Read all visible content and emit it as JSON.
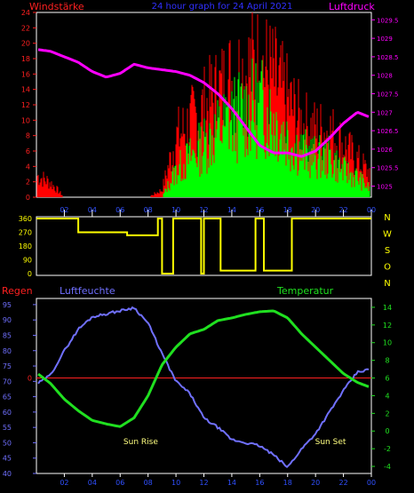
{
  "header": {
    "title": "24 hour graph for  24 April 2021",
    "left_label": "Windstärke",
    "right_label": "Luftdruck"
  },
  "colors": {
    "background": "#000000",
    "frame": "#ffffff",
    "wind_left_axis": "#ff2020",
    "gust": "#ff0000",
    "wind": "#00ff00",
    "pressure": "#ff00ff",
    "direction": "#ffff00",
    "title": "#3030ff",
    "humidity": "#7070ff",
    "temperature": "#20e020",
    "rain": "#ff2020",
    "sun_labels": "#ffff80",
    "x_ticks": "#3050ff"
  },
  "chart_data": [
    {
      "type": "bar",
      "panel": "wind",
      "x_ticks": [
        "02",
        "04",
        "06",
        "08",
        "10",
        "12",
        "14",
        "16",
        "18",
        "20",
        "22",
        "00"
      ],
      "left_axis": {
        "label": "Windstärke",
        "ticks": [
          0,
          2,
          4,
          6,
          8,
          10,
          12,
          14,
          16,
          18,
          20,
          22,
          24
        ],
        "ylim": [
          0,
          24
        ]
      },
      "right_axis": {
        "label": "Luftdruck",
        "ticks": [
          1025,
          1025.5,
          1026,
          1026.5,
          1027,
          1027.5,
          1028,
          1028.5,
          1029,
          1029.5
        ],
        "ylim": [
          1024.7,
          1029.7
        ]
      },
      "hours": [
        0,
        1,
        2,
        3,
        4,
        5,
        6,
        7,
        8,
        9,
        10,
        11,
        12,
        13,
        14,
        15,
        16,
        17,
        18,
        19,
        20,
        21,
        22,
        23,
        24
      ],
      "series": [
        {
          "key": "gust",
          "values": [
            3,
            2,
            0,
            0,
            0,
            0,
            0,
            0,
            0,
            1,
            8,
            10,
            12,
            14,
            16,
            17,
            18,
            16,
            13,
            10,
            9,
            9,
            7,
            5,
            3
          ]
        },
        {
          "key": "wind",
          "values": [
            0,
            0,
            0,
            0,
            0,
            0,
            0,
            0,
            0,
            0,
            4,
            6,
            8,
            10,
            12,
            13,
            14,
            12,
            9,
            7,
            6,
            6,
            4,
            3,
            1
          ]
        },
        {
          "key": "pressure",
          "values": [
            1028.7,
            1028.65,
            1028.5,
            1028.35,
            1028.1,
            1027.95,
            1028.05,
            1028.3,
            1028.2,
            1028.15,
            1028.1,
            1028.0,
            1027.8,
            1027.5,
            1027.1,
            1026.6,
            1026.1,
            1025.9,
            1025.9,
            1025.8,
            1025.95,
            1026.3,
            1026.7,
            1027.0,
            1026.85
          ]
        }
      ]
    },
    {
      "type": "line",
      "panel": "wind-direction",
      "left_axis": {
        "ticks": [
          0,
          90,
          180,
          270,
          360
        ],
        "ylim": [
          0,
          360
        ]
      },
      "right_labels": [
        "N",
        "W",
        "S",
        "O",
        "N"
      ],
      "segments": [
        {
          "hours": [
            0,
            3.0
          ],
          "value": 360
        },
        {
          "hours": [
            3.0,
            6.5
          ],
          "value": 270
        },
        {
          "hours": [
            6.5,
            8.7
          ],
          "value": 250
        },
        {
          "hours": [
            8.7,
            9.0
          ],
          "value": 360
        },
        {
          "hours": [
            9.0,
            9.8
          ],
          "value": 0
        },
        {
          "hours": [
            9.8,
            11.8
          ],
          "value": 360
        },
        {
          "hours": [
            11.8,
            12.0
          ],
          "value": 0
        },
        {
          "hours": [
            12.0,
            13.2
          ],
          "value": 360
        },
        {
          "hours": [
            13.2,
            15.7
          ],
          "value": 20
        },
        {
          "hours": [
            15.7,
            16.3
          ],
          "value": 360
        },
        {
          "hours": [
            16.3,
            18.3
          ],
          "value": 20
        },
        {
          "hours": [
            18.3,
            24.0
          ],
          "value": 360
        }
      ]
    },
    {
      "type": "line",
      "panel": "humidity-temperature",
      "legend": {
        "rain": "Regen",
        "humidity": "Luftfeuchte",
        "temperature": "Temperatur"
      },
      "left_axis": {
        "ticks": [
          40,
          45,
          50,
          55,
          60,
          65,
          70,
          75,
          80,
          85,
          90,
          95
        ],
        "ylim": [
          40,
          97
        ],
        "rain_zero_label": "0"
      },
      "right_axis": {
        "ticks": [
          -4,
          -2,
          0,
          2,
          4,
          6,
          8,
          10,
          12,
          14
        ],
        "ylim": [
          -4.8,
          15
        ]
      },
      "annotations": [
        {
          "text": "Sun Rise",
          "hour": 6.2
        },
        {
          "text": "Sun Set",
          "hour": 19.8
        }
      ],
      "hours": [
        0,
        1,
        2,
        3,
        4,
        5,
        6,
        7,
        8,
        9,
        10,
        11,
        12,
        13,
        14,
        15,
        16,
        17,
        18,
        19,
        20,
        21,
        22,
        23,
        24
      ],
      "series": [
        {
          "key": "humidity",
          "values": [
            69,
            72,
            80,
            87,
            91,
            92,
            93,
            94,
            89,
            79,
            70,
            66,
            58,
            55,
            51,
            50,
            49,
            46,
            42,
            48,
            53,
            60,
            67,
            73,
            74
          ]
        },
        {
          "key": "temperature",
          "values": [
            6.6,
            5.4,
            3.6,
            2.3,
            1.2,
            0.8,
            0.5,
            1.5,
            4.0,
            7.5,
            9.5,
            11.0,
            11.5,
            12.5,
            12.8,
            13.2,
            13.5,
            13.6,
            12.8,
            11.0,
            9.5,
            8.0,
            6.5,
            5.5,
            4.9
          ]
        },
        {
          "key": "rain",
          "values": [
            0,
            0,
            0,
            0,
            0,
            0,
            0,
            0,
            0,
            0,
            0,
            0,
            0,
            0,
            0,
            0,
            0,
            0,
            0,
            0,
            0,
            0,
            0,
            0,
            0
          ]
        }
      ]
    }
  ]
}
